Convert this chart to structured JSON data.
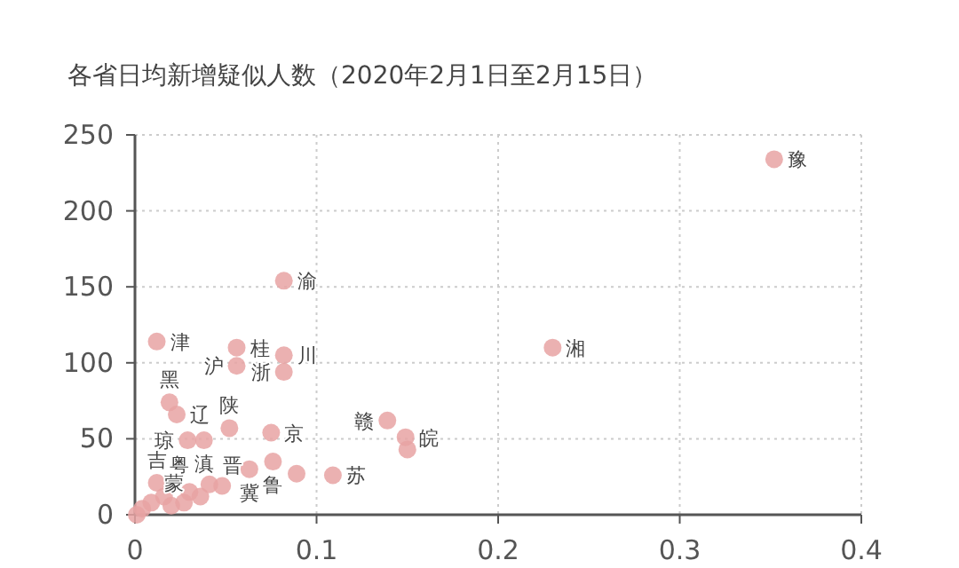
{
  "chart_data": {
    "type": "scatter",
    "title": "各省日均新增疑似人数（2020年2月1日至2月15日）",
    "xlim": [
      0,
      0.4
    ],
    "xticks": [
      0,
      0.1,
      0.2,
      0.3,
      0.4
    ],
    "ylim": [
      0,
      250
    ],
    "yticks": [
      0,
      50,
      100,
      150,
      200,
      250
    ],
    "grid": true,
    "marker": "circle",
    "series": [
      {
        "color": "#e8a3a3",
        "x": [
          0.352,
          0.23,
          0.082,
          0.012,
          0.056,
          0.056,
          0.082,
          0.082,
          0.019,
          0.023,
          0.029,
          0.038,
          0.052,
          0.075,
          0.139,
          0.149,
          0.15,
          0.012,
          0.041,
          0.048,
          0.063,
          0.076,
          0.089,
          0.109,
          0.001,
          0.004,
          0.009,
          0.016,
          0.02,
          0.027,
          0.036,
          0.03
        ],
        "values": [
          234,
          110,
          154,
          114,
          110,
          98,
          105,
          94,
          74,
          66,
          49,
          49,
          57,
          54,
          62,
          51,
          43,
          21,
          20,
          19,
          30,
          35,
          27,
          26,
          0,
          4,
          8,
          12,
          6,
          8,
          12,
          15
        ]
      }
    ],
    "annotations": [
      {
        "text": "豫",
        "x": 0.352,
        "y": 234
      },
      {
        "text": "湘",
        "x": 0.23,
        "y": 110
      },
      {
        "text": "渝",
        "x": 0.082,
        "y": 154
      },
      {
        "text": "津",
        "x": 0.012,
        "y": 114
      },
      {
        "text": "桂",
        "x": 0.056,
        "y": 110
      },
      {
        "text": "沪",
        "x": 0.056,
        "y": 98
      },
      {
        "text": "川",
        "x": 0.082,
        "y": 105
      },
      {
        "text": "浙",
        "x": 0.082,
        "y": 94
      },
      {
        "text": "黑",
        "x": 0.019,
        "y": 74
      },
      {
        "text": "辽",
        "x": 0.023,
        "y": 66
      },
      {
        "text": "陕",
        "x": 0.052,
        "y": 57
      },
      {
        "text": "京",
        "x": 0.075,
        "y": 54
      },
      {
        "text": "琼",
        "x": 0.029,
        "y": 49
      },
      {
        "text": "滇",
        "x": 0.038,
        "y": 49
      },
      {
        "text": "鲁",
        "x": 0.076,
        "y": 35
      },
      {
        "text": "冀",
        "x": 0.063,
        "y": 30
      },
      {
        "text": "粤",
        "x": 0.048,
        "y": 19
      },
      {
        "text": "晋",
        "x": 0.041,
        "y": 20
      },
      {
        "text": "苏",
        "x": 0.109,
        "y": 26
      },
      {
        "text": "赣",
        "x": 0.139,
        "y": 62
      },
      {
        "text": "皖",
        "x": 0.149,
        "y": 51
      },
      {
        "text": "吉",
        "x": 0.012,
        "y": 21
      },
      {
        "text": "蒙",
        "x": 0.009,
        "y": 8
      }
    ]
  }
}
